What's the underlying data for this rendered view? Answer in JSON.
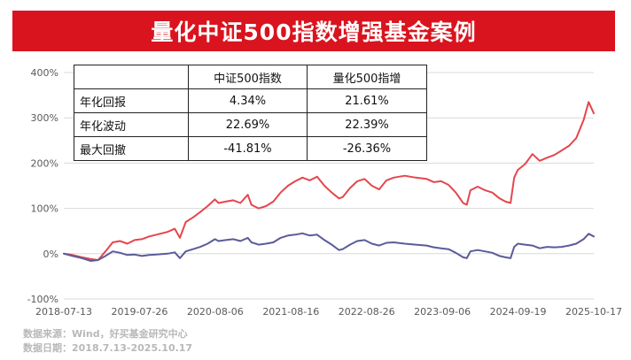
{
  "title": "量化中证500指数增强基金案例",
  "table": {
    "headers": [
      "",
      "中证500指数",
      "量化500指增"
    ],
    "rows": [
      {
        "label": "年化回报",
        "values": [
          "4.34%",
          "21.61%"
        ]
      },
      {
        "label": "年化波动",
        "values": [
          "22.69%",
          "22.39%"
        ]
      },
      {
        "label": "最大回撤",
        "values": [
          "-41.81%",
          "-26.36%"
        ]
      }
    ]
  },
  "footnotes": {
    "source": "数据来源：Wind，好买基金研究中心",
    "date_range": "数据日期：2018.7.13-2025.10.17"
  },
  "chart_data": {
    "type": "line",
    "x_tick_labels": [
      "2018-07-13",
      "2019-07-26",
      "2020-08-06",
      "2021-08-16",
      "2022-08-26",
      "2023-09-06",
      "2024-09-19",
      "2025-10-17"
    ],
    "y_tick_labels": [
      "400%",
      "300%",
      "200%",
      "100%",
      "0%",
      "-100%"
    ],
    "ylim": [
      -100,
      400
    ],
    "yticks": [
      -100,
      0,
      100,
      200,
      300,
      400
    ],
    "xlim": [
      2018.53,
      2025.79
    ],
    "grid": "horizontal",
    "y_unit": "%",
    "series": [
      {
        "color": "#e5464d",
        "points": [
          [
            2018.53,
            0
          ],
          [
            2018.65,
            -3
          ],
          [
            2018.78,
            -8
          ],
          [
            2018.9,
            -12
          ],
          [
            2019.0,
            -14
          ],
          [
            2019.1,
            5
          ],
          [
            2019.2,
            25
          ],
          [
            2019.3,
            28
          ],
          [
            2019.4,
            22
          ],
          [
            2019.5,
            30
          ],
          [
            2019.6,
            32
          ],
          [
            2019.7,
            38
          ],
          [
            2019.8,
            42
          ],
          [
            2019.95,
            48
          ],
          [
            2020.05,
            55
          ],
          [
            2020.12,
            35
          ],
          [
            2020.2,
            70
          ],
          [
            2020.3,
            80
          ],
          [
            2020.4,
            92
          ],
          [
            2020.5,
            105
          ],
          [
            2020.6,
            120
          ],
          [
            2020.65,
            112
          ],
          [
            2020.75,
            115
          ],
          [
            2020.85,
            118
          ],
          [
            2020.95,
            112
          ],
          [
            2021.05,
            130
          ],
          [
            2021.1,
            108
          ],
          [
            2021.2,
            100
          ],
          [
            2021.3,
            105
          ],
          [
            2021.4,
            115
          ],
          [
            2021.5,
            135
          ],
          [
            2021.6,
            150
          ],
          [
            2021.7,
            160
          ],
          [
            2021.8,
            168
          ],
          [
            2021.9,
            162
          ],
          [
            2022.0,
            170
          ],
          [
            2022.1,
            150
          ],
          [
            2022.2,
            135
          ],
          [
            2022.3,
            122
          ],
          [
            2022.35,
            125
          ],
          [
            2022.45,
            145
          ],
          [
            2022.55,
            160
          ],
          [
            2022.65,
            165
          ],
          [
            2022.75,
            150
          ],
          [
            2022.85,
            142
          ],
          [
            2022.95,
            162
          ],
          [
            2023.05,
            168
          ],
          [
            2023.2,
            172
          ],
          [
            2023.35,
            168
          ],
          [
            2023.5,
            165
          ],
          [
            2023.6,
            158
          ],
          [
            2023.7,
            160
          ],
          [
            2023.8,
            152
          ],
          [
            2023.9,
            135
          ],
          [
            2024.0,
            112
          ],
          [
            2024.05,
            108
          ],
          [
            2024.1,
            140
          ],
          [
            2024.2,
            148
          ],
          [
            2024.3,
            140
          ],
          [
            2024.4,
            135
          ],
          [
            2024.5,
            122
          ],
          [
            2024.58,
            115
          ],
          [
            2024.65,
            112
          ],
          [
            2024.7,
            168
          ],
          [
            2024.75,
            185
          ],
          [
            2024.85,
            198
          ],
          [
            2024.95,
            220
          ],
          [
            2025.05,
            205
          ],
          [
            2025.15,
            212
          ],
          [
            2025.25,
            218
          ],
          [
            2025.35,
            228
          ],
          [
            2025.45,
            238
          ],
          [
            2025.55,
            255
          ],
          [
            2025.65,
            295
          ],
          [
            2025.72,
            335
          ],
          [
            2025.79,
            310
          ]
        ]
      },
      {
        "color": "#5b5b99",
        "points": [
          [
            2018.53,
            0
          ],
          [
            2018.65,
            -5
          ],
          [
            2018.78,
            -10
          ],
          [
            2018.9,
            -16
          ],
          [
            2019.0,
            -14
          ],
          [
            2019.1,
            -5
          ],
          [
            2019.2,
            5
          ],
          [
            2019.3,
            2
          ],
          [
            2019.4,
            -3
          ],
          [
            2019.5,
            -2
          ],
          [
            2019.6,
            -5
          ],
          [
            2019.7,
            -3
          ],
          [
            2019.8,
            -2
          ],
          [
            2019.95,
            0
          ],
          [
            2020.05,
            3
          ],
          [
            2020.12,
            -10
          ],
          [
            2020.2,
            5
          ],
          [
            2020.3,
            10
          ],
          [
            2020.4,
            15
          ],
          [
            2020.5,
            22
          ],
          [
            2020.6,
            32
          ],
          [
            2020.65,
            28
          ],
          [
            2020.75,
            30
          ],
          [
            2020.85,
            32
          ],
          [
            2020.95,
            28
          ],
          [
            2021.05,
            35
          ],
          [
            2021.1,
            25
          ],
          [
            2021.2,
            20
          ],
          [
            2021.3,
            22
          ],
          [
            2021.4,
            25
          ],
          [
            2021.5,
            35
          ],
          [
            2021.6,
            40
          ],
          [
            2021.7,
            42
          ],
          [
            2021.8,
            45
          ],
          [
            2021.9,
            40
          ],
          [
            2022.0,
            42
          ],
          [
            2022.1,
            30
          ],
          [
            2022.2,
            20
          ],
          [
            2022.3,
            8
          ],
          [
            2022.35,
            10
          ],
          [
            2022.45,
            20
          ],
          [
            2022.55,
            28
          ],
          [
            2022.65,
            30
          ],
          [
            2022.75,
            22
          ],
          [
            2022.85,
            18
          ],
          [
            2022.95,
            24
          ],
          [
            2023.05,
            25
          ],
          [
            2023.2,
            22
          ],
          [
            2023.35,
            20
          ],
          [
            2023.5,
            18
          ],
          [
            2023.6,
            14
          ],
          [
            2023.7,
            12
          ],
          [
            2023.8,
            10
          ],
          [
            2023.9,
            2
          ],
          [
            2024.0,
            -8
          ],
          [
            2024.05,
            -10
          ],
          [
            2024.1,
            5
          ],
          [
            2024.2,
            8
          ],
          [
            2024.3,
            5
          ],
          [
            2024.4,
            2
          ],
          [
            2024.5,
            -5
          ],
          [
            2024.58,
            -8
          ],
          [
            2024.65,
            -10
          ],
          [
            2024.7,
            15
          ],
          [
            2024.75,
            22
          ],
          [
            2024.85,
            20
          ],
          [
            2024.95,
            18
          ],
          [
            2025.05,
            12
          ],
          [
            2025.15,
            15
          ],
          [
            2025.25,
            14
          ],
          [
            2025.35,
            15
          ],
          [
            2025.45,
            18
          ],
          [
            2025.55,
            22
          ],
          [
            2025.65,
            32
          ],
          [
            2025.72,
            44
          ],
          [
            2025.79,
            38
          ]
        ]
      }
    ]
  }
}
